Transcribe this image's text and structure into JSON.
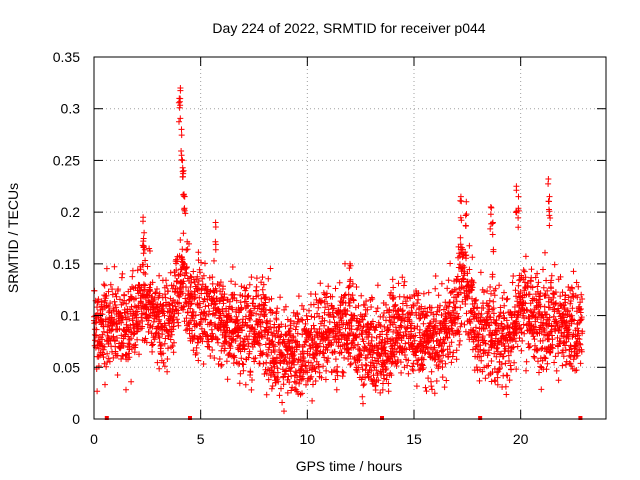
{
  "chart_data": {
    "type": "scatter",
    "title": "Day 224 of 2022, SRMTID for receiver p044",
    "xlabel": "GPS time / hours",
    "ylabel": "SRMTID / TECUs",
    "xlim": [
      0,
      24
    ],
    "ylim": [
      0,
      0.35
    ],
    "xticks": [
      0,
      5,
      10,
      15,
      20
    ],
    "xtick_labels": [
      "0",
      "5",
      "10",
      "15",
      "20"
    ],
    "yticks": [
      0,
      0.05,
      0.1,
      0.15,
      0.2,
      0.25,
      0.3,
      0.35
    ],
    "ytick_labels": [
      "0",
      "0.05",
      "0.1",
      "0.15",
      "0.2",
      "0.25",
      "0.3",
      "0.35"
    ],
    "grid": true,
    "marker": "+",
    "color": "#ff0000",
    "gap_markers_x": [
      0.6,
      4.5,
      13.5,
      18.1,
      22.8
    ],
    "series": [
      {
        "name": "SRMTID",
        "profile": [
          [
            0.0,
            0.085
          ],
          [
            0.5,
            0.09
          ],
          [
            1.0,
            0.095
          ],
          [
            1.5,
            0.085
          ],
          [
            2.0,
            0.1
          ],
          [
            2.3,
            0.13
          ],
          [
            2.5,
            0.11
          ],
          [
            3.0,
            0.09
          ],
          [
            3.5,
            0.1
          ],
          [
            3.9,
            0.12
          ],
          [
            4.2,
            0.14
          ],
          [
            4.5,
            0.11
          ],
          [
            5.0,
            0.105
          ],
          [
            5.5,
            0.105
          ],
          [
            6.0,
            0.095
          ],
          [
            6.5,
            0.09
          ],
          [
            7.0,
            0.085
          ],
          [
            7.5,
            0.09
          ],
          [
            8.0,
            0.095
          ],
          [
            8.5,
            0.07
          ],
          [
            9.0,
            0.06
          ],
          [
            9.5,
            0.06
          ],
          [
            10.0,
            0.065
          ],
          [
            10.5,
            0.08
          ],
          [
            11.0,
            0.08
          ],
          [
            11.5,
            0.085
          ],
          [
            12.0,
            0.095
          ],
          [
            12.5,
            0.075
          ],
          [
            13.0,
            0.07
          ],
          [
            13.5,
            0.065
          ],
          [
            14.0,
            0.085
          ],
          [
            14.5,
            0.085
          ],
          [
            15.0,
            0.085
          ],
          [
            15.5,
            0.075
          ],
          [
            16.0,
            0.075
          ],
          [
            16.5,
            0.085
          ],
          [
            17.0,
            0.11
          ],
          [
            17.3,
            0.14
          ],
          [
            17.6,
            0.12
          ],
          [
            18.0,
            0.08
          ],
          [
            18.5,
            0.09
          ],
          [
            19.0,
            0.075
          ],
          [
            19.5,
            0.08
          ],
          [
            20.0,
            0.115
          ],
          [
            20.5,
            0.1
          ],
          [
            21.0,
            0.095
          ],
          [
            21.5,
            0.1
          ],
          [
            22.0,
            0.085
          ],
          [
            22.5,
            0.085
          ],
          [
            22.9,
            0.085
          ]
        ],
        "spikes": [
          [
            4.0,
            0.31
          ],
          [
            4.05,
            0.32
          ],
          [
            4.1,
            0.28
          ],
          [
            4.15,
            0.25
          ],
          [
            4.2,
            0.24
          ],
          [
            4.25,
            0.215
          ],
          [
            2.3,
            0.195
          ],
          [
            2.35,
            0.18
          ],
          [
            5.7,
            0.19
          ],
          [
            17.2,
            0.215
          ],
          [
            17.45,
            0.21
          ],
          [
            18.6,
            0.205
          ],
          [
            18.7,
            0.19
          ],
          [
            19.8,
            0.225
          ],
          [
            19.9,
            0.215
          ],
          [
            21.3,
            0.232
          ],
          [
            21.35,
            0.215
          ],
          [
            12.0,
            0.15
          ],
          [
            14.0,
            0.135
          ]
        ]
      }
    ]
  }
}
